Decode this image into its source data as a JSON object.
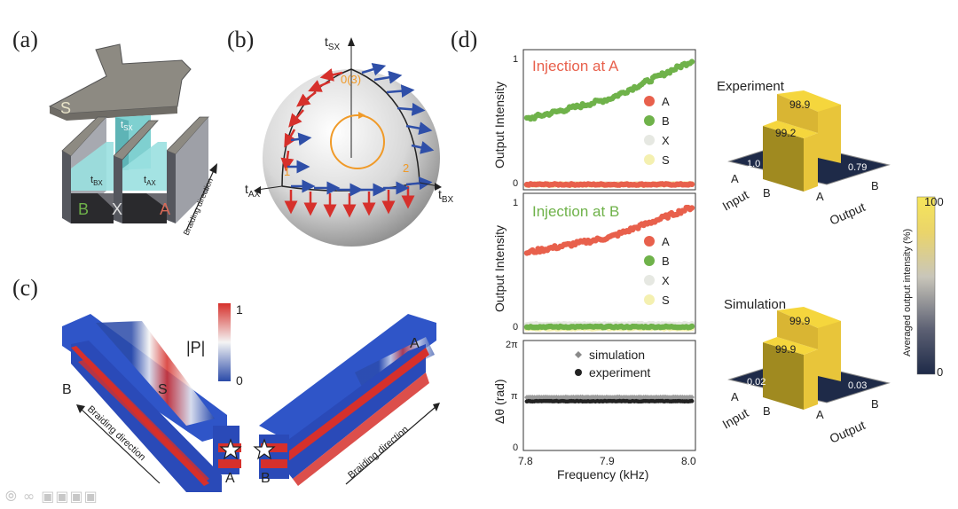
{
  "panels": {
    "a": {
      "label": "(a)",
      "labels": {
        "S": "S",
        "tsx": "t",
        "tsx_sub": "SX",
        "tbx": "t",
        "tbx_sub": "BX",
        "tax": "t",
        "tax_sub": "AX",
        "B": "B",
        "X": "X",
        "A": "A",
        "braiding": "Braiding direction"
      }
    },
    "b": {
      "label": "(b)",
      "labels": {
        "tsx": "t",
        "tsx_sub": "SX",
        "tax": "t",
        "tax_sub": "AX",
        "tbx": "t",
        "tbx_sub": "BX",
        "p0": "0(3)",
        "p1": "1",
        "p2": "2"
      }
    },
    "c": {
      "label": "(c)",
      "colorbar": {
        "title": "|P|",
        "max": "1",
        "min": "0"
      },
      "labels": {
        "B": "B",
        "S": "S",
        "A_left": "A",
        "A_right": "A",
        "B_right": "B",
        "braiding_left": "Braiding direction",
        "braiding_right": "Braiding direction"
      }
    },
    "d": {
      "label": "(d)",
      "legend_names": [
        "A",
        "B",
        "X",
        "S"
      ],
      "colors": {
        "A": "#e8604c",
        "B": "#6fb24a",
        "X": "#e6e8e2",
        "S": "#f4f0b0"
      },
      "top": {
        "title": "Injection at A",
        "ylabel": "Output Intensity",
        "ytick_top": "1",
        "ytick_bottom": "0"
      },
      "mid": {
        "title": "Injection at B",
        "ylabel": "Output Intensity",
        "ytick_top": "1",
        "ytick_bottom": "0"
      },
      "bottom": {
        "ylabel": "Δθ (rad)",
        "ytick_top": "2π",
        "ytick_mid": "π",
        "ytick_bottom": "0",
        "legend_sim": "simulation",
        "legend_exp": "experiment",
        "xlabel": "Frequency (kHz)",
        "xticks": [
          "7.8",
          "7.9",
          "8.0"
        ]
      },
      "bar3d": {
        "experiment": {
          "title": "Experiment",
          "AA": "98.9",
          "BB": "99.2",
          "BA": "1.0",
          "AB": "0.79"
        },
        "simulation": {
          "title": "Simulation",
          "AA": "99.9",
          "BB": "99.9",
          "BA": "0.02",
          "AB": "0.03"
        },
        "axis_input": "Input",
        "axis_output": "Output",
        "tick_A": "A",
        "tick_B": "B"
      },
      "colorbar": {
        "title": "Averaged output intensity (%)",
        "max": "100",
        "min": "0"
      }
    }
  },
  "chart_data": [
    {
      "type": "scatter",
      "title": "Injection at A",
      "xlabel": "",
      "ylabel": "Output Intensity",
      "x": [
        7.8,
        7.9,
        8.0
      ],
      "ylim": [
        0,
        1
      ],
      "series": [
        {
          "name": "A",
          "values": [
            0.0,
            0.0,
            0.0
          ]
        },
        {
          "name": "B",
          "values": [
            0.52,
            0.68,
            0.98
          ]
        },
        {
          "name": "X",
          "values": [
            0.0,
            0.0,
            0.0
          ]
        },
        {
          "name": "S",
          "values": [
            0.0,
            0.0,
            0.0
          ]
        }
      ]
    },
    {
      "type": "scatter",
      "title": "Injection at B",
      "xlabel": "",
      "ylabel": "Output Intensity",
      "x": [
        7.8,
        7.9,
        8.0
      ],
      "ylim": [
        0,
        1
      ],
      "series": [
        {
          "name": "A",
          "values": [
            0.6,
            0.72,
            0.96
          ]
        },
        {
          "name": "B",
          "values": [
            0.01,
            0.01,
            0.01
          ]
        },
        {
          "name": "X",
          "values": [
            0.03,
            0.03,
            0.03
          ]
        },
        {
          "name": "S",
          "values": [
            0.0,
            0.0,
            0.0
          ]
        }
      ]
    },
    {
      "type": "scatter",
      "title": "",
      "xlabel": "Frequency (kHz)",
      "ylabel": "Δθ (rad)",
      "x": [
        7.8,
        7.9,
        8.0
      ],
      "ylim": [
        0,
        6.283
      ],
      "series": [
        {
          "name": "simulation",
          "values": [
            3.14,
            3.14,
            3.14
          ]
        },
        {
          "name": "experiment",
          "values": [
            2.9,
            2.9,
            2.9
          ]
        }
      ]
    },
    {
      "type": "bar",
      "title": "Experiment",
      "categories": [
        "A→A",
        "B→B",
        "B→A",
        "A→B"
      ],
      "values": [
        98.9,
        99.2,
        1.0,
        0.79
      ],
      "ylim": [
        0,
        100
      ]
    },
    {
      "type": "bar",
      "title": "Simulation",
      "categories": [
        "A→A",
        "B→B",
        "B→A",
        "A→B"
      ],
      "values": [
        99.9,
        99.9,
        0.02,
        0.03
      ],
      "ylim": [
        0,
        100
      ]
    }
  ]
}
